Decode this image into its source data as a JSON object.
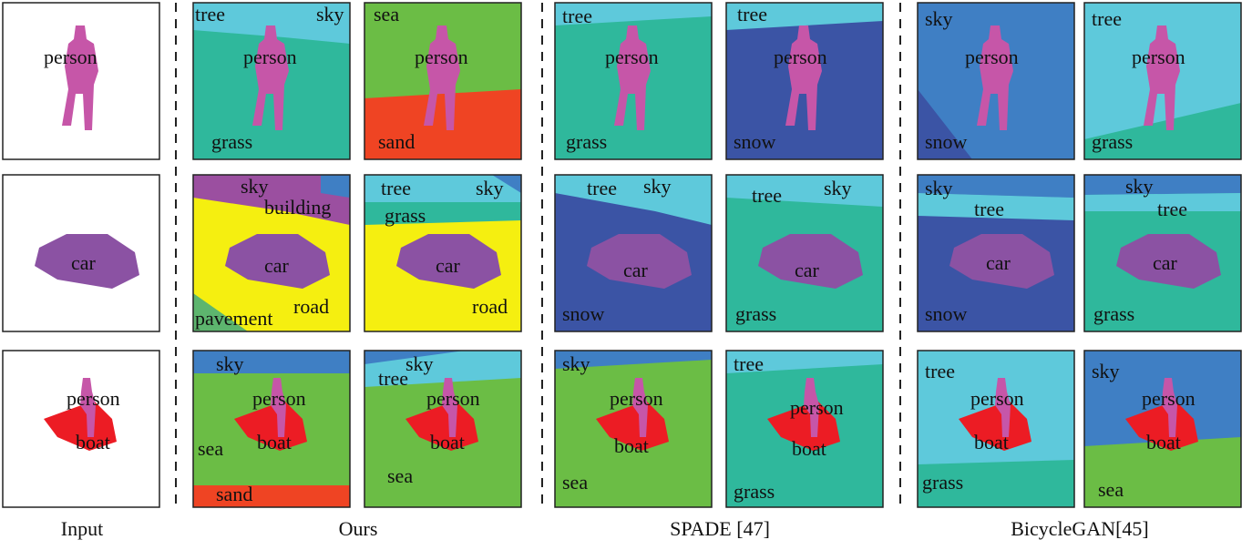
{
  "captions": [
    "Input",
    "Ours",
    "SPADE [47]",
    "BicycleGAN[45]"
  ],
  "rows": [
    {
      "panels": [
        {
          "labels": [
            "person"
          ]
        },
        {
          "labels": [
            "tree",
            "sky",
            "person",
            "grass"
          ]
        },
        {
          "labels": [
            "sea",
            "person",
            "sand"
          ]
        },
        {
          "labels": [
            "tree",
            "person",
            "grass"
          ]
        },
        {
          "labels": [
            "tree",
            "person",
            "snow"
          ]
        },
        {
          "labels": [
            "sky",
            "person",
            "snow"
          ]
        },
        {
          "labels": [
            "tree",
            "person",
            "grass"
          ]
        }
      ]
    },
    {
      "panels": [
        {
          "labels": [
            "car"
          ]
        },
        {
          "labels": [
            "sky",
            "building",
            "car",
            "pavement",
            "road"
          ]
        },
        {
          "labels": [
            "tree",
            "sky",
            "grass",
            "car",
            "road"
          ]
        },
        {
          "labels": [
            "tree",
            "sky",
            "car",
            "snow"
          ]
        },
        {
          "labels": [
            "tree",
            "sky",
            "car",
            "grass"
          ]
        },
        {
          "labels": [
            "sky",
            "tree",
            "car",
            "snow"
          ]
        },
        {
          "labels": [
            "sky",
            "tree",
            "car",
            "grass"
          ]
        }
      ]
    },
    {
      "panels": [
        {
          "labels": [
            "person",
            "boat"
          ]
        },
        {
          "labels": [
            "sky",
            "person",
            "boat",
            "sea",
            "sand"
          ]
        },
        {
          "labels": [
            "sky",
            "tree",
            "person",
            "boat",
            "sea"
          ]
        },
        {
          "labels": [
            "sky",
            "person",
            "boat",
            "sea"
          ]
        },
        {
          "labels": [
            "tree",
            "person",
            "boat",
            "grass"
          ]
        },
        {
          "labels": [
            "tree",
            "person",
            "boat",
            "grass"
          ]
        },
        {
          "labels": [
            "sky",
            "person",
            "boat",
            "sea"
          ]
        }
      ]
    }
  ]
}
